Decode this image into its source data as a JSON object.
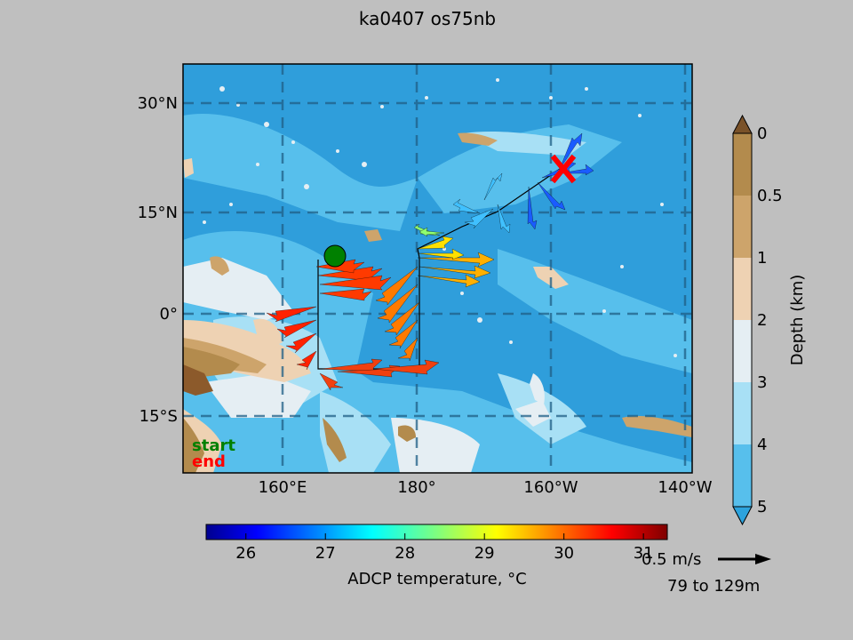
{
  "title": "ka0407 os75nb",
  "map": {
    "lat_labels": [
      "30°N",
      "15°N",
      "0°",
      "15°S"
    ],
    "lon_labels": [
      "160°E",
      "180°",
      "160°W",
      "140°W"
    ],
    "legend_start": "start",
    "legend_end": "end",
    "legend_start_color": "#008000",
    "legend_end_color": "#ff0000"
  },
  "depth_colorbar": {
    "label": "Depth (km)",
    "ticks": [
      "0",
      "0.5",
      "1",
      "2",
      "3",
      "4",
      "5"
    ],
    "colors": [
      "#b38b4d",
      "#cda46b",
      "#eed2b3",
      "#e5eef3",
      "#a8e0f5",
      "#57bfec",
      "#2da3dd"
    ]
  },
  "temp_colorbar": {
    "label": "ADCP temperature, °C",
    "ticks": [
      "26",
      "27",
      "28",
      "29",
      "30",
      "31"
    ],
    "min": 25.5,
    "max": 31.3
  },
  "scale": {
    "speed_label": "0.5 m/s",
    "depth_range": "79 to 129m"
  }
}
